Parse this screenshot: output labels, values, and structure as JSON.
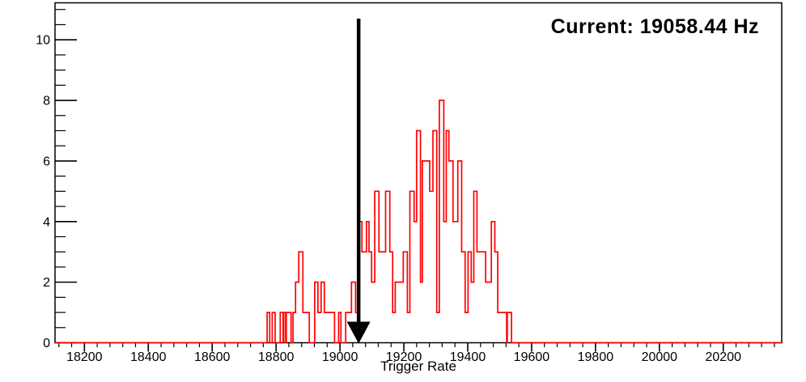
{
  "window": {
    "background": "#ffffff"
  },
  "chart_data": {
    "type": "bar",
    "subtype": "step-histogram",
    "title": "",
    "xlabel": "Trigger Rate",
    "ylabel": "",
    "xlim": [
      18108,
      20383
    ],
    "ylim": [
      0,
      11.22
    ],
    "x_major_ticks": [
      18200,
      18400,
      18600,
      18800,
      19000,
      19200,
      19400,
      19600,
      19800,
      20000,
      20200
    ],
    "x_minor_step": 40,
    "y_major_ticks": [
      0,
      2,
      4,
      6,
      8,
      10
    ],
    "y_minor_step": 0.5,
    "grid": false,
    "legend": false,
    "line_color": "#ff0000",
    "axis_color": "#000000",
    "annotation": {
      "text": "Current: 19058.44 Hz",
      "color": "#000000"
    },
    "marker_arrow": {
      "x": 19058.44,
      "y_from": 10.7,
      "y_to": 0,
      "color": "#000000"
    },
    "steps_format": "pairs [x_left, count]; count holds until next pair; 0 outside",
    "steps": [
      [
        18772,
        1
      ],
      [
        18780,
        0
      ],
      [
        18788,
        1
      ],
      [
        18797,
        0
      ],
      [
        18813,
        1
      ],
      [
        18822,
        0
      ],
      [
        18824,
        1
      ],
      [
        18830,
        0
      ],
      [
        18832,
        1
      ],
      [
        18847,
        0
      ],
      [
        18853,
        1
      ],
      [
        18861,
        2
      ],
      [
        18871,
        3
      ],
      [
        18884,
        1
      ],
      [
        18904,
        0
      ],
      [
        18921,
        2
      ],
      [
        18931,
        1
      ],
      [
        18941,
        2
      ],
      [
        18951,
        1
      ],
      [
        18983,
        0
      ],
      [
        18996,
        1
      ],
      [
        19003,
        0
      ],
      [
        19018,
        1
      ],
      [
        19036,
        2
      ],
      [
        19049,
        1
      ],
      [
        19060,
        4
      ],
      [
        19069,
        3
      ],
      [
        19083,
        4
      ],
      [
        19091,
        3
      ],
      [
        19099,
        2
      ],
      [
        19109,
        5
      ],
      [
        19122,
        3
      ],
      [
        19143,
        5
      ],
      [
        19156,
        3
      ],
      [
        19165,
        1
      ],
      [
        19173,
        2
      ],
      [
        19198,
        3
      ],
      [
        19211,
        1
      ],
      [
        19219,
        5
      ],
      [
        19232,
        4
      ],
      [
        19240,
        7
      ],
      [
        19252,
        2
      ],
      [
        19258,
        6
      ],
      [
        19281,
        5
      ],
      [
        19291,
        7
      ],
      [
        19303,
        1
      ],
      [
        19311,
        8
      ],
      [
        19325,
        4
      ],
      [
        19333,
        7
      ],
      [
        19341,
        6
      ],
      [
        19354,
        4
      ],
      [
        19369,
        6
      ],
      [
        19381,
        3
      ],
      [
        19392,
        1
      ],
      [
        19401,
        3
      ],
      [
        19411,
        2
      ],
      [
        19419,
        5
      ],
      [
        19429,
        3
      ],
      [
        19456,
        2
      ],
      [
        19474,
        4
      ],
      [
        19485,
        3
      ],
      [
        19494,
        1
      ],
      [
        19522,
        0
      ],
      [
        19524,
        1
      ],
      [
        19537,
        0
      ]
    ]
  }
}
